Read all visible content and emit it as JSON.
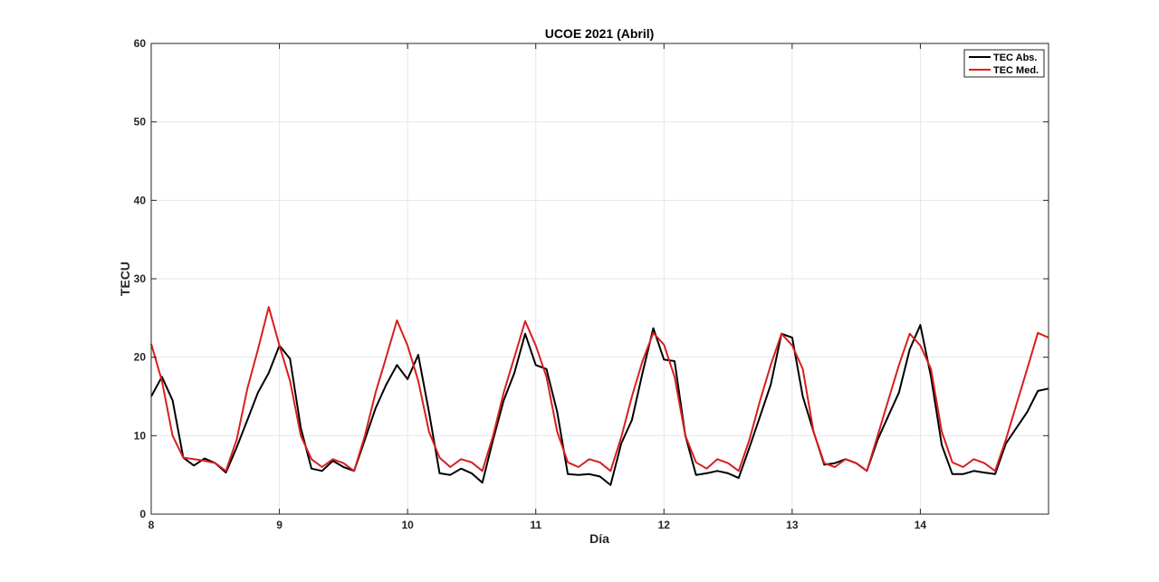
{
  "chart_data": {
    "type": "line",
    "title": "UCOE 2021 (Abril)",
    "xlabel": "Día",
    "ylabel": "TECU",
    "xlim": [
      8,
      15
    ],
    "ylim": [
      0,
      60
    ],
    "xticks": [
      8,
      9,
      10,
      11,
      12,
      13,
      14
    ],
    "yticks": [
      0,
      10,
      20,
      30,
      40,
      50,
      60
    ],
    "grid": true,
    "legend_position": "top-right",
    "series": [
      {
        "name": "TEC Abs.",
        "color": "#000000",
        "x": [
          8.0,
          8.083,
          8.167,
          8.25,
          8.333,
          8.417,
          8.5,
          8.583,
          8.667,
          8.75,
          8.833,
          8.917,
          9.0,
          9.083,
          9.167,
          9.25,
          9.333,
          9.417,
          9.5,
          9.583,
          9.667,
          9.75,
          9.833,
          9.917,
          10.0,
          10.083,
          10.167,
          10.25,
          10.333,
          10.417,
          10.5,
          10.583,
          10.667,
          10.75,
          10.833,
          10.917,
          11.0,
          11.083,
          11.167,
          11.25,
          11.333,
          11.417,
          11.5,
          11.583,
          11.667,
          11.75,
          11.833,
          11.917,
          12.0,
          12.083,
          12.167,
          12.25,
          12.333,
          12.417,
          12.5,
          12.583,
          12.667,
          12.75,
          12.833,
          12.917,
          13.0,
          13.083,
          13.167,
          13.25,
          13.333,
          13.417,
          13.5,
          13.583,
          13.667,
          13.75,
          13.833,
          13.917,
          14.0,
          14.083,
          14.167,
          14.25,
          14.333,
          14.417,
          14.5,
          14.583,
          14.667,
          14.75,
          14.833,
          14.917,
          15.0
        ],
        "values": [
          15.0,
          17.5,
          14.5,
          7.2,
          6.2,
          7.1,
          6.5,
          5.3,
          8.5,
          12.0,
          15.5,
          18.0,
          21.5,
          19.8,
          11.0,
          5.8,
          5.5,
          6.8,
          6.0,
          5.5,
          9.5,
          13.5,
          16.5,
          19.0,
          17.2,
          20.3,
          13.0,
          5.2,
          5.0,
          5.8,
          5.2,
          4.0,
          9.5,
          14.5,
          18.0,
          23.0,
          19.0,
          18.5,
          13.0,
          5.1,
          5.0,
          5.1,
          4.8,
          3.7,
          9.0,
          12.0,
          18.0,
          23.7,
          19.7,
          19.5,
          10.0,
          5.0,
          5.2,
          5.5,
          5.2,
          4.6,
          8.5,
          12.5,
          16.5,
          23.0,
          22.5,
          15.0,
          10.5,
          6.3,
          6.5,
          7.0,
          6.5,
          5.5,
          9.5,
          12.5,
          15.5,
          21.0,
          24.1,
          17.5,
          8.8,
          5.1,
          5.1,
          5.5,
          5.3,
          5.1,
          9.0,
          11.0,
          13.0,
          15.7,
          16.0
        ]
      },
      {
        "name": "TEC Med.",
        "color": "#d91e1e",
        "x": [
          8.0,
          8.083,
          8.167,
          8.25,
          8.333,
          8.417,
          8.5,
          8.583,
          8.667,
          8.75,
          8.833,
          8.917,
          9.0,
          9.083,
          9.167,
          9.25,
          9.333,
          9.417,
          9.5,
          9.583,
          9.667,
          9.75,
          9.833,
          9.917,
          10.0,
          10.083,
          10.167,
          10.25,
          10.333,
          10.417,
          10.5,
          10.583,
          10.667,
          10.75,
          10.833,
          10.917,
          11.0,
          11.083,
          11.167,
          11.25,
          11.333,
          11.417,
          11.5,
          11.583,
          11.667,
          11.75,
          11.833,
          11.917,
          12.0,
          12.083,
          12.167,
          12.25,
          12.333,
          12.417,
          12.5,
          12.583,
          12.667,
          12.75,
          12.833,
          12.917,
          13.0,
          13.083,
          13.167,
          13.25,
          13.333,
          13.417,
          13.5,
          13.583,
          13.667,
          13.75,
          13.833,
          13.917,
          14.0,
          14.083,
          14.167,
          14.25,
          14.333,
          14.417,
          14.5,
          14.583,
          14.667,
          14.75,
          14.833,
          14.917,
          15.0
        ],
        "values": [
          21.7,
          17.0,
          10.0,
          7.2,
          7.0,
          6.8,
          6.5,
          5.5,
          9.5,
          16.0,
          21.0,
          26.4,
          21.5,
          17.0,
          10.0,
          7.0,
          6.0,
          7.0,
          6.5,
          5.5,
          10.0,
          15.5,
          20.0,
          24.7,
          21.5,
          17.0,
          10.5,
          7.2,
          6.0,
          7.0,
          6.6,
          5.5,
          10.0,
          15.5,
          20.0,
          24.6,
          21.5,
          17.5,
          10.5,
          6.6,
          6.0,
          7.0,
          6.6,
          5.5,
          9.8,
          15.0,
          19.5,
          23.1,
          21.6,
          17.5,
          10.0,
          6.6,
          5.8,
          7.0,
          6.5,
          5.5,
          9.5,
          14.5,
          19.0,
          23.0,
          21.5,
          18.5,
          10.5,
          6.5,
          6.0,
          7.0,
          6.5,
          5.5,
          10.0,
          14.5,
          19.0,
          23.0,
          21.5,
          18.5,
          10.5,
          6.6,
          6.0,
          7.0,
          6.5,
          5.5,
          9.5,
          14.0,
          18.5,
          23.1,
          22.5
        ]
      }
    ]
  }
}
